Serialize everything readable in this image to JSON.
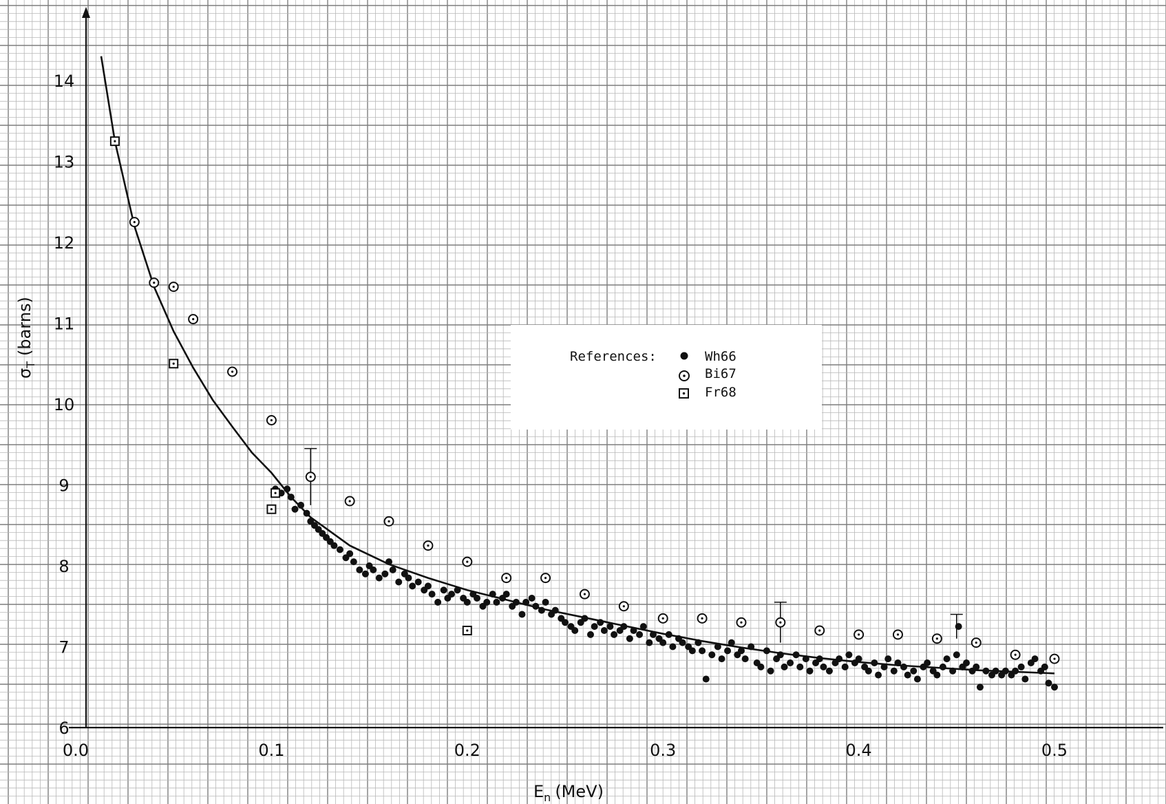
{
  "chart_data": {
    "type": "scatter",
    "title": "",
    "xlabel": "E",
    "xlabel_subscript": "n",
    "xlabel_unit": "(MeV)",
    "ylabel": "σ",
    "ylabel_subscript": "T",
    "ylabel_unit": "(barns)",
    "xlim": [
      0.0,
      0.5
    ],
    "ylim": [
      6,
      14
    ],
    "x_ticks": [
      "0.0",
      "0.1",
      "0.2",
      "0.3",
      "0.4",
      "0.5"
    ],
    "y_ticks": [
      "6",
      "7",
      "8",
      "9",
      "10",
      "11",
      "12",
      "13",
      "14"
    ],
    "grid": true,
    "legend": {
      "title": "References:",
      "placement": "center-right",
      "entries": [
        {
          "label": "Wh66",
          "marker": "filled-circle"
        },
        {
          "label": "Bi67",
          "marker": "dotted-circle"
        },
        {
          "label": "Fr68",
          "marker": "dotted-square"
        }
      ]
    },
    "series": [
      {
        "name": "Wh66",
        "marker": "filled-circle",
        "points": [
          [
            0.102,
            8.95
          ],
          [
            0.105,
            8.9
          ],
          [
            0.108,
            8.95
          ],
          [
            0.11,
            8.85
          ],
          [
            0.112,
            8.7
          ],
          [
            0.115,
            8.75
          ],
          [
            0.118,
            8.65
          ],
          [
            0.12,
            8.55
          ],
          [
            0.122,
            8.5
          ],
          [
            0.124,
            8.45
          ],
          [
            0.126,
            8.4
          ],
          [
            0.128,
            8.35
          ],
          [
            0.13,
            8.3
          ],
          [
            0.132,
            8.25
          ],
          [
            0.135,
            8.2
          ],
          [
            0.138,
            8.1
          ],
          [
            0.14,
            8.15
          ],
          [
            0.142,
            8.05
          ],
          [
            0.145,
            7.95
          ],
          [
            0.148,
            7.9
          ],
          [
            0.15,
            8.0
          ],
          [
            0.152,
            7.95
          ],
          [
            0.155,
            7.85
          ],
          [
            0.158,
            7.9
          ],
          [
            0.16,
            8.05
          ],
          [
            0.162,
            7.95
          ],
          [
            0.165,
            7.8
          ],
          [
            0.168,
            7.9
          ],
          [
            0.17,
            7.85
          ],
          [
            0.172,
            7.75
          ],
          [
            0.175,
            7.8
          ],
          [
            0.178,
            7.7
          ],
          [
            0.18,
            7.75
          ],
          [
            0.182,
            7.65
          ],
          [
            0.185,
            7.55
          ],
          [
            0.188,
            7.7
          ],
          [
            0.19,
            7.6
          ],
          [
            0.192,
            7.65
          ],
          [
            0.195,
            7.7
          ],
          [
            0.198,
            7.6
          ],
          [
            0.2,
            7.55
          ],
          [
            0.203,
            7.65
          ],
          [
            0.205,
            7.6
          ],
          [
            0.208,
            7.5
          ],
          [
            0.21,
            7.55
          ],
          [
            0.213,
            7.65
          ],
          [
            0.215,
            7.55
          ],
          [
            0.218,
            7.6
          ],
          [
            0.22,
            7.65
          ],
          [
            0.223,
            7.5
          ],
          [
            0.225,
            7.55
          ],
          [
            0.228,
            7.4
          ],
          [
            0.23,
            7.55
          ],
          [
            0.233,
            7.6
          ],
          [
            0.235,
            7.5
          ],
          [
            0.238,
            7.45
          ],
          [
            0.24,
            7.55
          ],
          [
            0.243,
            7.4
          ],
          [
            0.245,
            7.45
          ],
          [
            0.248,
            7.35
          ],
          [
            0.25,
            7.3
          ],
          [
            0.253,
            7.25
          ],
          [
            0.255,
            7.2
          ],
          [
            0.258,
            7.3
          ],
          [
            0.26,
            7.35
          ],
          [
            0.263,
            7.15
          ],
          [
            0.265,
            7.25
          ],
          [
            0.268,
            7.3
          ],
          [
            0.27,
            7.2
          ],
          [
            0.273,
            7.25
          ],
          [
            0.275,
            7.15
          ],
          [
            0.278,
            7.2
          ],
          [
            0.28,
            7.25
          ],
          [
            0.283,
            7.1
          ],
          [
            0.285,
            7.2
          ],
          [
            0.288,
            7.15
          ],
          [
            0.29,
            7.25
          ],
          [
            0.293,
            7.05
          ],
          [
            0.295,
            7.15
          ],
          [
            0.298,
            7.1
          ],
          [
            0.3,
            7.05
          ],
          [
            0.303,
            7.15
          ],
          [
            0.305,
            7.0
          ],
          [
            0.308,
            7.1
          ],
          [
            0.31,
            7.05
          ],
          [
            0.313,
            7.0
          ],
          [
            0.315,
            6.95
          ],
          [
            0.318,
            7.05
          ],
          [
            0.32,
            6.95
          ],
          [
            0.322,
            6.6
          ],
          [
            0.325,
            6.9
          ],
          [
            0.328,
            7.0
          ],
          [
            0.33,
            6.85
          ],
          [
            0.333,
            6.95
          ],
          [
            0.335,
            7.05
          ],
          [
            0.338,
            6.9
          ],
          [
            0.34,
            6.95
          ],
          [
            0.342,
            6.85
          ],
          [
            0.345,
            7.0
          ],
          [
            0.348,
            6.8
          ],
          [
            0.35,
            6.75
          ],
          [
            0.353,
            6.95
          ],
          [
            0.355,
            6.7
          ],
          [
            0.358,
            6.85
          ],
          [
            0.36,
            6.9
          ],
          [
            0.362,
            6.75
          ],
          [
            0.365,
            6.8
          ],
          [
            0.368,
            6.9
          ],
          [
            0.37,
            6.75
          ],
          [
            0.373,
            6.85
          ],
          [
            0.375,
            6.7
          ],
          [
            0.378,
            6.8
          ],
          [
            0.38,
            6.85
          ],
          [
            0.382,
            6.75
          ],
          [
            0.385,
            6.7
          ],
          [
            0.388,
            6.8
          ],
          [
            0.39,
            6.85
          ],
          [
            0.393,
            6.75
          ],
          [
            0.395,
            6.9
          ],
          [
            0.398,
            6.8
          ],
          [
            0.4,
            6.85
          ],
          [
            0.403,
            6.75
          ],
          [
            0.405,
            6.7
          ],
          [
            0.408,
            6.8
          ],
          [
            0.41,
            6.65
          ],
          [
            0.413,
            6.75
          ],
          [
            0.415,
            6.85
          ],
          [
            0.418,
            6.7
          ],
          [
            0.42,
            6.8
          ],
          [
            0.423,
            6.75
          ],
          [
            0.425,
            6.65
          ],
          [
            0.428,
            6.7
          ],
          [
            0.43,
            6.6
          ],
          [
            0.433,
            6.75
          ],
          [
            0.435,
            6.8
          ],
          [
            0.438,
            6.7
          ],
          [
            0.44,
            6.65
          ],
          [
            0.443,
            6.75
          ],
          [
            0.445,
            6.85
          ],
          [
            0.448,
            6.7
          ],
          [
            0.45,
            6.9
          ],
          [
            0.453,
            6.75
          ],
          [
            0.455,
            6.8
          ],
          [
            0.458,
            6.7
          ],
          [
            0.46,
            6.75
          ],
          [
            0.462,
            6.5
          ],
          [
            0.465,
            6.7
          ],
          [
            0.468,
            6.65
          ],
          [
            0.47,
            6.7
          ],
          [
            0.473,
            6.65
          ],
          [
            0.475,
            6.7
          ],
          [
            0.478,
            6.65
          ],
          [
            0.48,
            6.7
          ],
          [
            0.483,
            6.75
          ],
          [
            0.485,
            6.6
          ],
          [
            0.488,
            6.8
          ],
          [
            0.49,
            6.85
          ],
          [
            0.493,
            6.7
          ],
          [
            0.495,
            6.75
          ],
          [
            0.497,
            6.55
          ],
          [
            0.5,
            6.5
          ],
          [
            0.451,
            7.25
          ]
        ]
      },
      {
        "name": "Bi67",
        "marker": "dotted-circle",
        "points": [
          [
            0.03,
            12.25
          ],
          [
            0.04,
            11.5
          ],
          [
            0.05,
            11.45
          ],
          [
            0.06,
            11.05
          ],
          [
            0.08,
            10.4
          ],
          [
            0.1,
            9.8
          ],
          [
            0.12,
            9.1
          ],
          [
            0.14,
            8.8
          ],
          [
            0.16,
            8.55
          ],
          [
            0.18,
            8.25
          ],
          [
            0.2,
            8.05
          ],
          [
            0.22,
            7.85
          ],
          [
            0.24,
            7.85
          ],
          [
            0.26,
            7.65
          ],
          [
            0.28,
            7.5
          ],
          [
            0.3,
            7.35
          ],
          [
            0.32,
            7.35
          ],
          [
            0.34,
            7.3
          ],
          [
            0.36,
            7.3
          ],
          [
            0.38,
            7.2
          ],
          [
            0.4,
            7.15
          ],
          [
            0.42,
            7.15
          ],
          [
            0.44,
            7.1
          ],
          [
            0.46,
            7.05
          ],
          [
            0.48,
            6.9
          ],
          [
            0.5,
            6.85
          ]
        ]
      },
      {
        "name": "Fr68",
        "marker": "dotted-square",
        "points": [
          [
            0.02,
            13.25
          ],
          [
            0.05,
            10.5
          ],
          [
            0.1,
            8.7
          ],
          [
            0.102,
            8.9
          ],
          [
            0.2,
            7.2
          ]
        ]
      }
    ],
    "fit_curve": [
      [
        0.013,
        14.3
      ],
      [
        0.02,
        13.25
      ],
      [
        0.03,
        12.2
      ],
      [
        0.04,
        11.45
      ],
      [
        0.05,
        10.9
      ],
      [
        0.06,
        10.45
      ],
      [
        0.07,
        10.05
      ],
      [
        0.08,
        9.72
      ],
      [
        0.09,
        9.4
      ],
      [
        0.1,
        9.15
      ],
      [
        0.11,
        8.85
      ],
      [
        0.12,
        8.6
      ],
      [
        0.14,
        8.25
      ],
      [
        0.16,
        8.02
      ],
      [
        0.18,
        7.85
      ],
      [
        0.2,
        7.7
      ],
      [
        0.22,
        7.58
      ],
      [
        0.24,
        7.46
      ],
      [
        0.26,
        7.36
      ],
      [
        0.28,
        7.26
      ],
      [
        0.3,
        7.16
      ],
      [
        0.32,
        7.07
      ],
      [
        0.34,
        6.99
      ],
      [
        0.36,
        6.92
      ],
      [
        0.38,
        6.86
      ],
      [
        0.4,
        6.81
      ],
      [
        0.42,
        6.77
      ],
      [
        0.44,
        6.74
      ],
      [
        0.46,
        6.71
      ],
      [
        0.48,
        6.69
      ],
      [
        0.5,
        6.67
      ]
    ],
    "error_bars": [
      {
        "x": 0.12,
        "y": 9.1,
        "ylow": 8.75,
        "yhigh": 9.45
      },
      {
        "x": 0.36,
        "y": 7.3,
        "ylow": 7.05,
        "yhigh": 7.55
      },
      {
        "x": 0.45,
        "y": 7.25,
        "ylow": 7.1,
        "yhigh": 7.4
      }
    ]
  }
}
